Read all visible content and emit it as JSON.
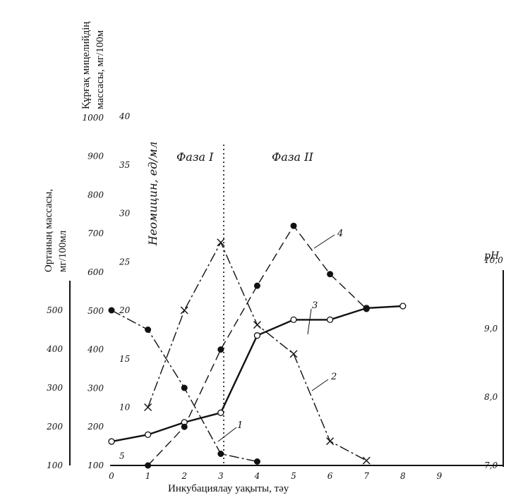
{
  "chart_data": {
    "type": "line",
    "xlabel": "Инкубациялау уақыты, тәу",
    "x_ticks": [
      "0",
      "1",
      "2",
      "3",
      "4",
      "5",
      "6",
      "7",
      "8",
      "9"
    ],
    "xlim": [
      0,
      10
    ],
    "axes": {
      "mycelium": {
        "title_line1": "Құрғақ мицелийдің",
        "title_line2": "массасы, мг/100м",
        "ticks": [
          "100",
          "200",
          "300",
          "400",
          "500",
          "600",
          "700",
          "800",
          "900",
          "1000"
        ],
        "ylim": [
          100,
          1000
        ]
      },
      "neomycin": {
        "title": "Неомицин, ед/мл",
        "ticks": [
          "5",
          "10",
          "15",
          "20",
          "25",
          "30",
          "35",
          "40"
        ],
        "ylim": [
          0,
          40
        ]
      },
      "medium": {
        "title_line1": "Ортаның массасы,",
        "title_line2": "мг/100мл",
        "ticks": [
          "100",
          "200",
          "300",
          "400",
          "500"
        ],
        "ylim": [
          100,
          500
        ]
      },
      "ph": {
        "title": "pH",
        "ticks": [
          "7,0",
          "8,0",
          "9,0",
          "10,0"
        ],
        "ylim": [
          7.0,
          10.0
        ]
      }
    },
    "phases": [
      "Фаза I",
      "Фаза II"
    ],
    "phase_boundary_x": 3,
    "series": [
      {
        "id": "1",
        "label": "1",
        "axis": "medium",
        "style": "dash-dot",
        "marker": "filled-circle",
        "x": [
          0,
          1,
          2,
          3,
          4
        ],
        "y": [
          500,
          450,
          300,
          130,
          110
        ]
      },
      {
        "id": "2",
        "label": "2",
        "axis": "neomycin",
        "style": "dash-dot",
        "marker": "cross",
        "x": [
          1,
          2,
          3,
          4,
          5,
          6,
          7
        ],
        "y": [
          10,
          20,
          27,
          18.5,
          15.5,
          6.5,
          4.5
        ]
      },
      {
        "id": "3",
        "label": "3",
        "axis": "ph",
        "style": "solid",
        "marker": "open-circle",
        "x": [
          0,
          1,
          2,
          3,
          4,
          5,
          6,
          7,
          8
        ],
        "y": [
          7.35,
          7.45,
          7.63,
          7.77,
          8.9,
          9.13,
          9.13,
          9.3,
          9.33
        ]
      },
      {
        "id": "4",
        "label": "4",
        "axis": "mycelium",
        "style": "dashed",
        "marker": "filled-circle",
        "x": [
          1,
          2,
          3,
          4,
          5,
          6,
          7
        ],
        "y": [
          100,
          200,
          400,
          565,
          720,
          595,
          505
        ]
      }
    ],
    "grid": false,
    "legend": "none"
  }
}
